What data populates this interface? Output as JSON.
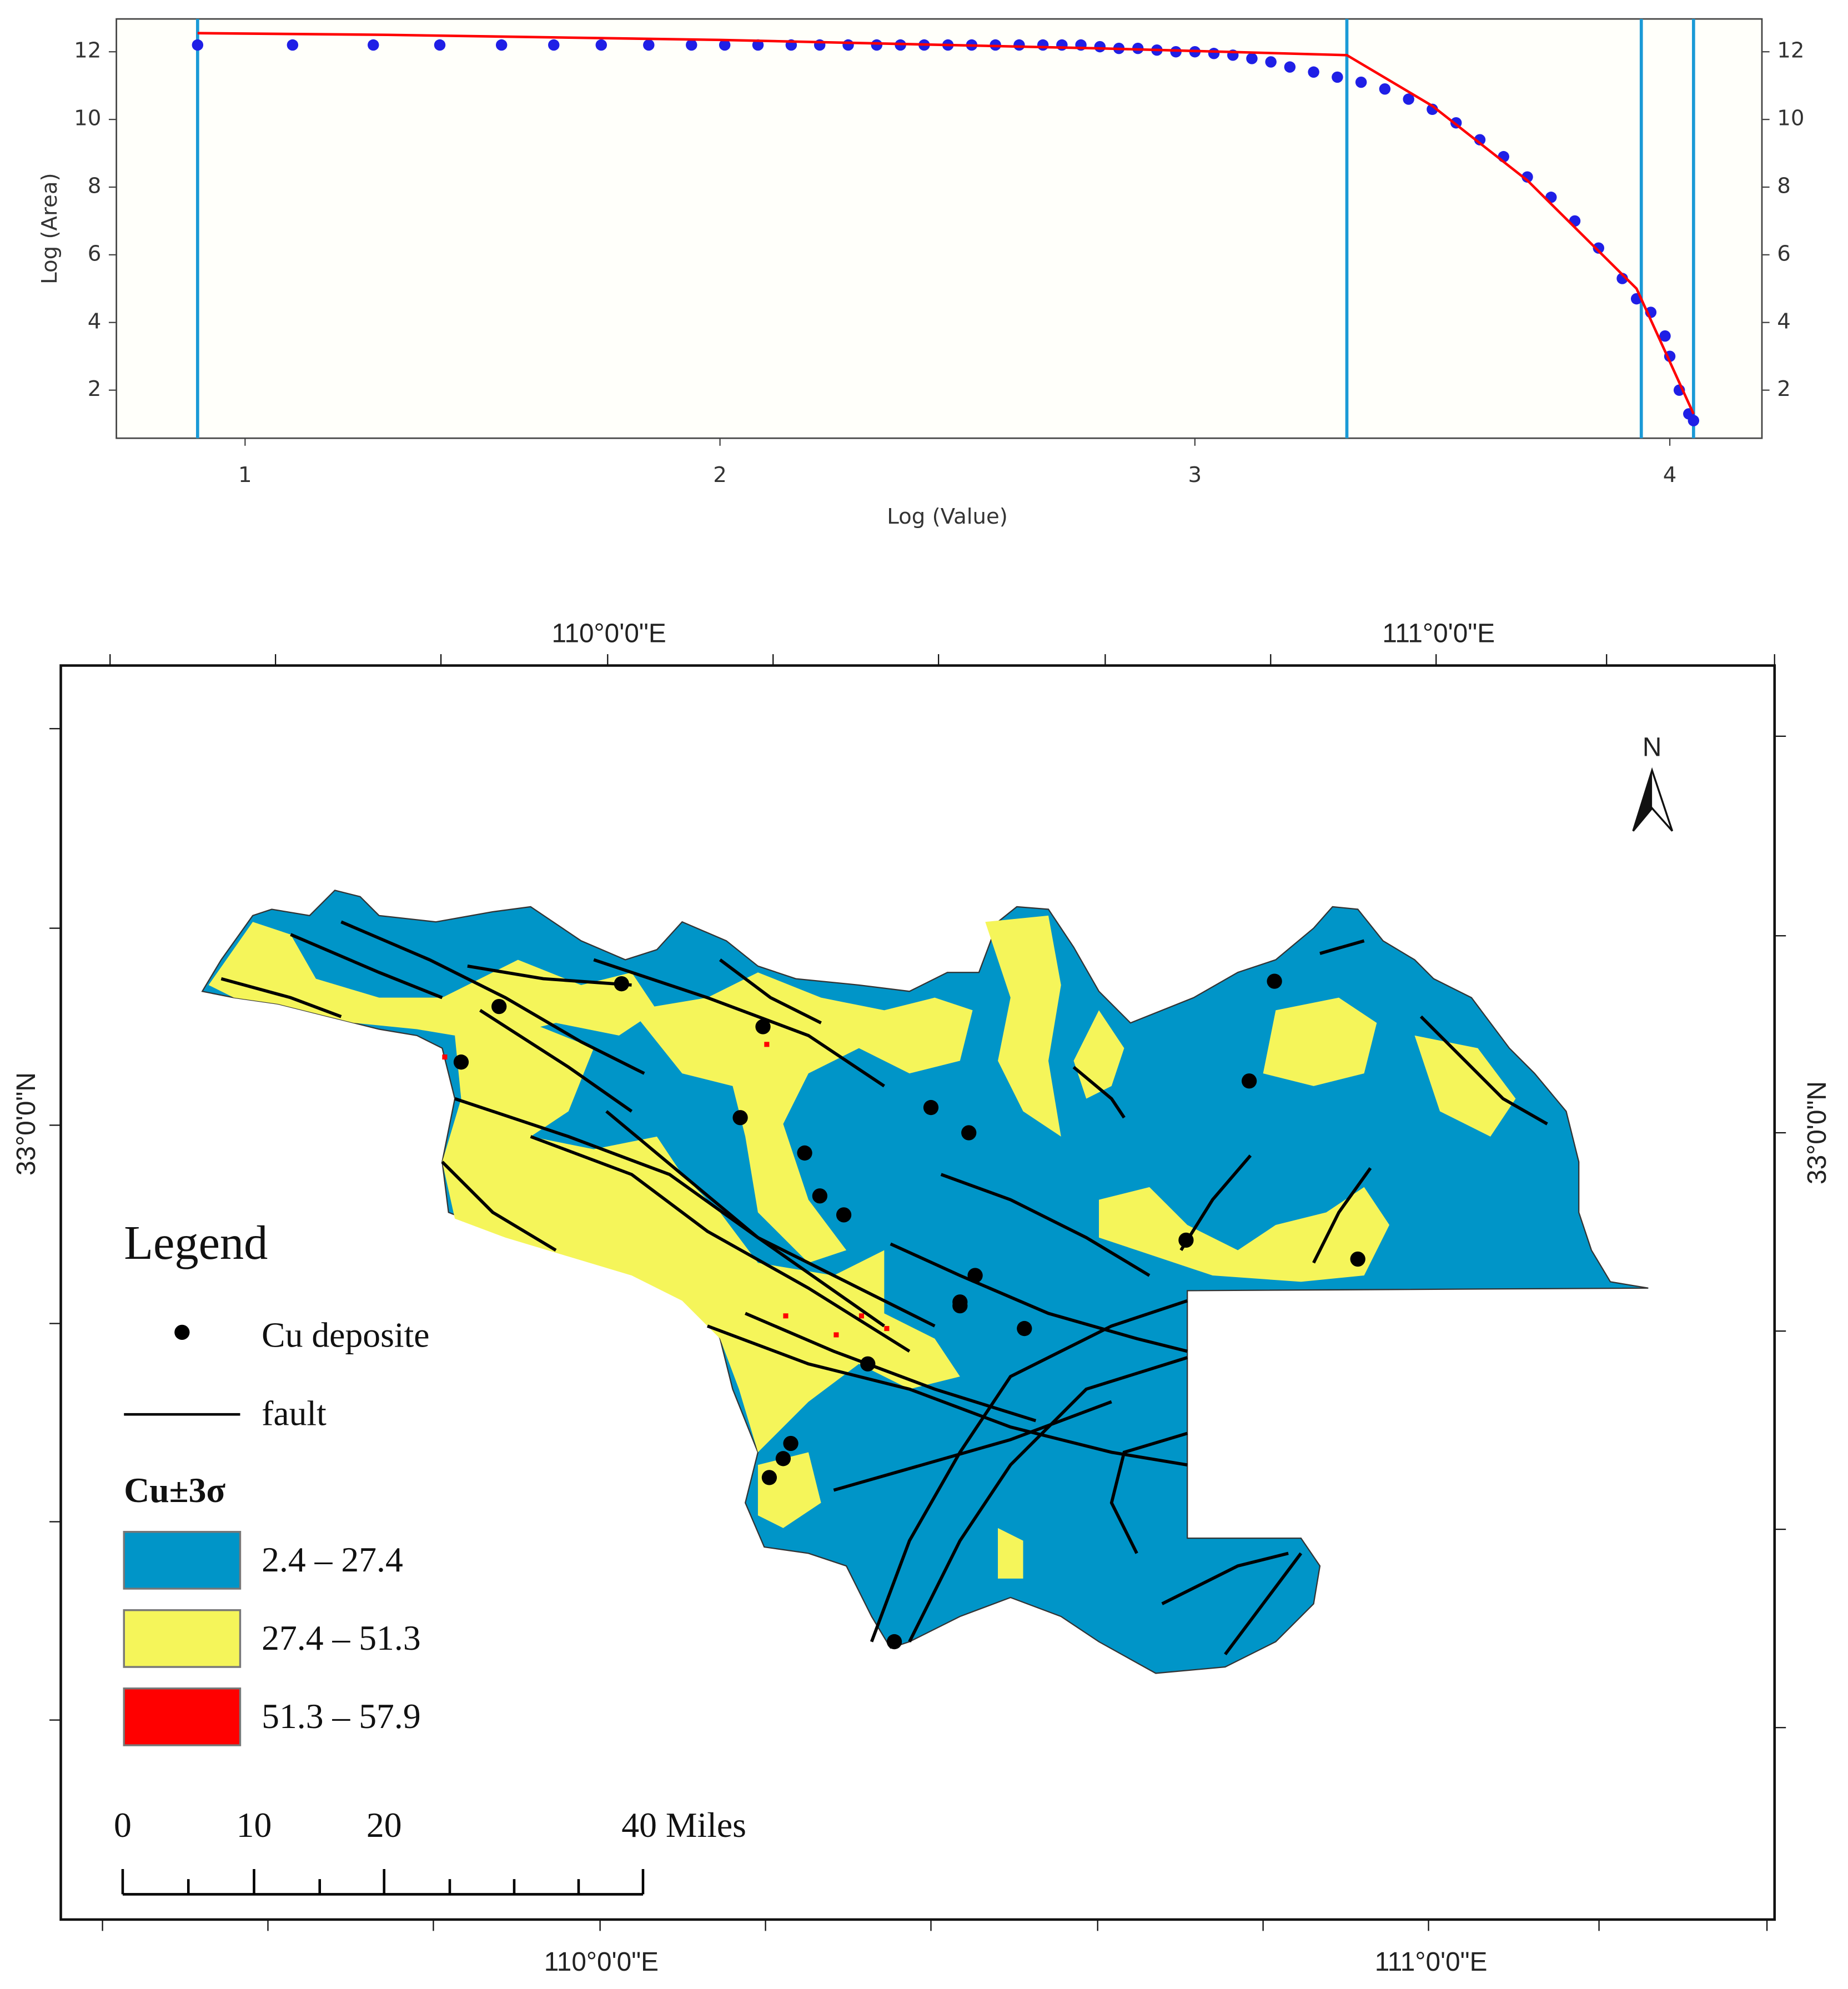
{
  "chart_data": {
    "type": "scatter",
    "xlabel": "Log (Value)",
    "ylabel": "Log (Area)",
    "xlim": [
      0.729,
      4.194
    ],
    "ylim": [
      0.58,
      12.97
    ],
    "xticks": [
      1,
      2,
      3,
      4
    ],
    "yticks": [
      2,
      4,
      6,
      8,
      10,
      12
    ],
    "thresholds": [
      0.9,
      3.32,
      3.94,
      4.05
    ],
    "threshold_color": "#1a9ad6",
    "series": [
      {
        "mode": "markers",
        "color": "#1f1fe6",
        "x": [
          0.9,
          1.1,
          1.27,
          1.41,
          1.54,
          1.65,
          1.75,
          1.85,
          1.94,
          2.01,
          2.08,
          2.15,
          2.21,
          2.27,
          2.33,
          2.38,
          2.43,
          2.48,
          2.53,
          2.58,
          2.63,
          2.68,
          2.72,
          2.76,
          2.8,
          2.84,
          2.88,
          2.92,
          2.96,
          3.0,
          3.04,
          3.08,
          3.12,
          3.16,
          3.2,
          3.25,
          3.3,
          3.35,
          3.4,
          3.45,
          3.5,
          3.55,
          3.6,
          3.65,
          3.7,
          3.75,
          3.8,
          3.85,
          3.9,
          3.93,
          3.96,
          3.99,
          4.0,
          4.02,
          4.04,
          4.05
        ],
        "values": [
          12.2,
          12.2,
          12.2,
          12.2,
          12.2,
          12.2,
          12.2,
          12.2,
          12.2,
          12.2,
          12.2,
          12.2,
          12.2,
          12.2,
          12.2,
          12.2,
          12.2,
          12.2,
          12.2,
          12.2,
          12.2,
          12.2,
          12.2,
          12.2,
          12.15,
          12.1,
          12.1,
          12.05,
          12.0,
          12.0,
          11.95,
          11.9,
          11.8,
          11.7,
          11.55,
          11.4,
          11.25,
          11.1,
          10.9,
          10.6,
          10.3,
          9.9,
          9.4,
          8.9,
          8.3,
          7.7,
          7.0,
          6.2,
          5.3,
          4.7,
          4.3,
          3.6,
          3.0,
          2.0,
          1.3,
          1.1
        ]
      },
      {
        "mode": "line",
        "color": "#ff0000",
        "x": [
          0.9,
          1.3,
          2.0,
          2.8,
          3.32,
          3.5,
          3.7,
          3.93,
          4.05
        ],
        "values": [
          12.55,
          12.5,
          12.35,
          12.1,
          11.9,
          10.4,
          8.2,
          5.0,
          1.3
        ]
      }
    ]
  },
  "map": {
    "lon_labels": [
      "110°0'0\"E",
      "111°0'0\"E"
    ],
    "lat_label": "33°0'0\"N",
    "north": "N",
    "legend": {
      "title": "Legend",
      "deposit": "Cu deposite",
      "fault": "fault",
      "class_title": "Cu±3σ",
      "classes": [
        {
          "label": "2.4 – 27.4",
          "color": "#0095c8"
        },
        {
          "label": "27.4 – 51.3",
          "color": "#f5f55a"
        },
        {
          "label": "51.3 – 57.9",
          "color": "#ff0000"
        }
      ]
    },
    "scale": {
      "labels": [
        "0",
        "10",
        "20",
        "40 Miles"
      ]
    }
  }
}
